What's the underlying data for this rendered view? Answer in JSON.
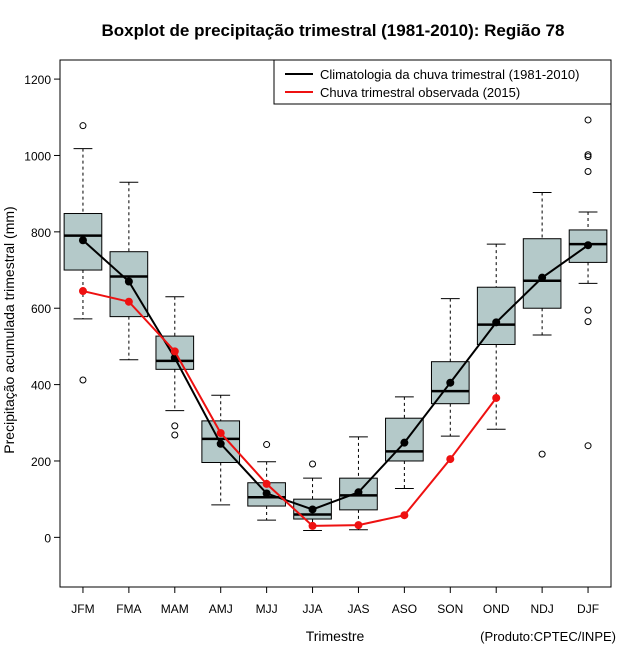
{
  "chart_data": {
    "type": "boxplot",
    "title": "Boxplot de precipitação trimestral (1981-2010): Região 78",
    "xlabel": "Trimestre",
    "ylabel": "Precipitação acumulada trimestral (mm)",
    "credit": "(Produto:CPTEC/INPE)",
    "ylim": [
      -130,
      1250
    ],
    "yticks": [
      0,
      200,
      400,
      600,
      800,
      1000,
      1200
    ],
    "categories": [
      "JFM",
      "FMA",
      "MAM",
      "AMJ",
      "MJJ",
      "JJA",
      "JAS",
      "ASO",
      "SON",
      "OND",
      "NDJ",
      "DJF"
    ],
    "boxes": [
      {
        "whisker_low": 572,
        "q1": 700,
        "median": 790,
        "q3": 848,
        "whisker_high": 1018,
        "outliers": [
          412,
          1078
        ]
      },
      {
        "whisker_low": 465,
        "q1": 578,
        "median": 683,
        "q3": 748,
        "whisker_high": 930,
        "outliers": []
      },
      {
        "whisker_low": 332,
        "q1": 440,
        "median": 462,
        "q3": 527,
        "whisker_high": 630,
        "outliers": [
          268,
          292
        ]
      },
      {
        "whisker_low": 85,
        "q1": 196,
        "median": 258,
        "q3": 305,
        "whisker_high": 372,
        "outliers": []
      },
      {
        "whisker_low": 45,
        "q1": 82,
        "median": 105,
        "q3": 143,
        "whisker_high": 198,
        "outliers": [
          243
        ]
      },
      {
        "whisker_low": 18,
        "q1": 48,
        "median": 60,
        "q3": 100,
        "whisker_high": 155,
        "outliers": [
          192
        ]
      },
      {
        "whisker_low": 20,
        "q1": 72,
        "median": 110,
        "q3": 155,
        "whisker_high": 263,
        "outliers": []
      },
      {
        "whisker_low": 128,
        "q1": 200,
        "median": 225,
        "q3": 312,
        "whisker_high": 368,
        "outliers": []
      },
      {
        "whisker_low": 265,
        "q1": 350,
        "median": 383,
        "q3": 460,
        "whisker_high": 625,
        "outliers": []
      },
      {
        "whisker_low": 283,
        "q1": 505,
        "median": 557,
        "q3": 655,
        "whisker_high": 768,
        "outliers": []
      },
      {
        "whisker_low": 530,
        "q1": 600,
        "median": 672,
        "q3": 782,
        "whisker_high": 903,
        "outliers": [
          218
        ]
      },
      {
        "whisker_low": 665,
        "q1": 720,
        "median": 768,
        "q3": 805,
        "whisker_high": 852,
        "outliers": [
          240,
          565,
          595,
          958,
          997,
          1002,
          1093
        ]
      }
    ],
    "series": [
      {
        "name": "Climatologia da chuva trimestral (1981-2010)",
        "color": "#000000",
        "values": [
          778,
          670,
          470,
          245,
          115,
          73,
          118,
          248,
          405,
          563,
          680,
          765
        ]
      },
      {
        "name": "Chuva trimestral observada (2015)",
        "color": "#ee1111",
        "values": [
          645,
          617,
          487,
          273,
          140,
          30,
          32,
          58,
          205,
          365,
          null,
          null
        ]
      }
    ],
    "box_fill": "#b4c9c9"
  }
}
